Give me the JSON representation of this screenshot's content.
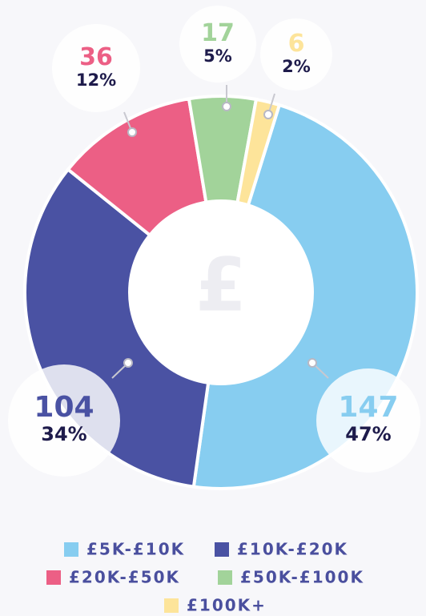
{
  "chart_data": {
    "type": "donut",
    "center_label": "£",
    "categories": [
      "£5K-£10K",
      "£10K-£20K",
      "£20K-£50K",
      "£50K-£100K",
      "£100K+"
    ],
    "values": [
      147,
      104,
      36,
      17,
      6
    ],
    "percent_labels": [
      "47%",
      "34%",
      "12%",
      "5%",
      "2%"
    ],
    "colors": [
      "#87cdf0",
      "#4a52a3",
      "#ec5f85",
      "#a2d39a",
      "#fde49a"
    ],
    "legend": "bottom"
  }
}
